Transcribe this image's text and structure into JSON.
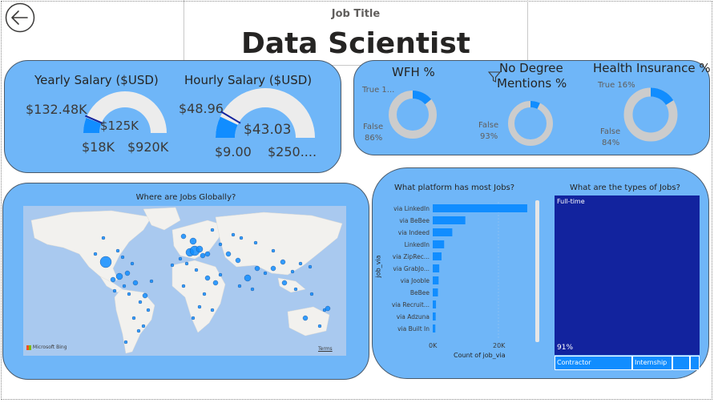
{
  "header": {
    "subtitle": "Job Title",
    "title": "Data Scientist"
  },
  "yearly": {
    "title": "Yearly Salary ($USD)",
    "value": "$125K",
    "target": "$132.48K",
    "min": "$18K",
    "max": "$920K",
    "fill_fraction": 0.12,
    "target_fraction": 0.13
  },
  "hourly": {
    "title": "Hourly Salary ($USD)",
    "value": "$43.03",
    "target": "$48.96",
    "min": "$9.00",
    "max": "$250....",
    "fill_fraction": 0.14,
    "target_fraction": 0.17
  },
  "wfh": {
    "title": "WFH %",
    "true_label": "True 1...",
    "false_label": "False",
    "false_pct": "86%",
    "true_fraction": 0.14
  },
  "degree": {
    "title_line1": "No Degree",
    "title_line2": "Mentions %",
    "false_label": "False",
    "false_pct": "93%",
    "true_fraction": 0.07
  },
  "health": {
    "title": "Health Insurance %",
    "true_label": "True 16%",
    "false_label": "False",
    "false_pct": "84%",
    "true_fraction": 0.16
  },
  "map": {
    "title": "Where are Jobs Globally?",
    "logo": "Microsoft Bing",
    "terms": "Terms"
  },
  "platform": {
    "title": "What platform has most Jobs?",
    "ylabel": "job_via",
    "xlabel": "Count of job_via",
    "ticks": [
      "0K",
      "20K"
    ]
  },
  "types": {
    "title": "What are the types of Jobs?",
    "fulltime": "Full-time",
    "fulltime_pct": "91%",
    "contractor": "Contractor",
    "internship": "Internship"
  },
  "chart_data": {
    "type": "bar",
    "categories": [
      "via LinkedIn",
      "via BeBee",
      "via Indeed",
      "LinkedIn",
      "via ZipRec...",
      "via GrabJo...",
      "via Jooble",
      "BeBee",
      "via Recruit...",
      "via Adzuna",
      "via Built In"
    ],
    "values": [
      29000,
      10000,
      6000,
      3500,
      2700,
      2000,
      1800,
      1600,
      1000,
      900,
      800
    ],
    "xlim": [
      0,
      30000
    ],
    "xlabel": "Count of job_via",
    "ylabel": "job_via",
    "title": "What platform has most Jobs?"
  },
  "colors": {
    "panel": "#6fb6f8",
    "accent": "#118dff",
    "treemap": "#12239e",
    "track": "#ececec"
  }
}
